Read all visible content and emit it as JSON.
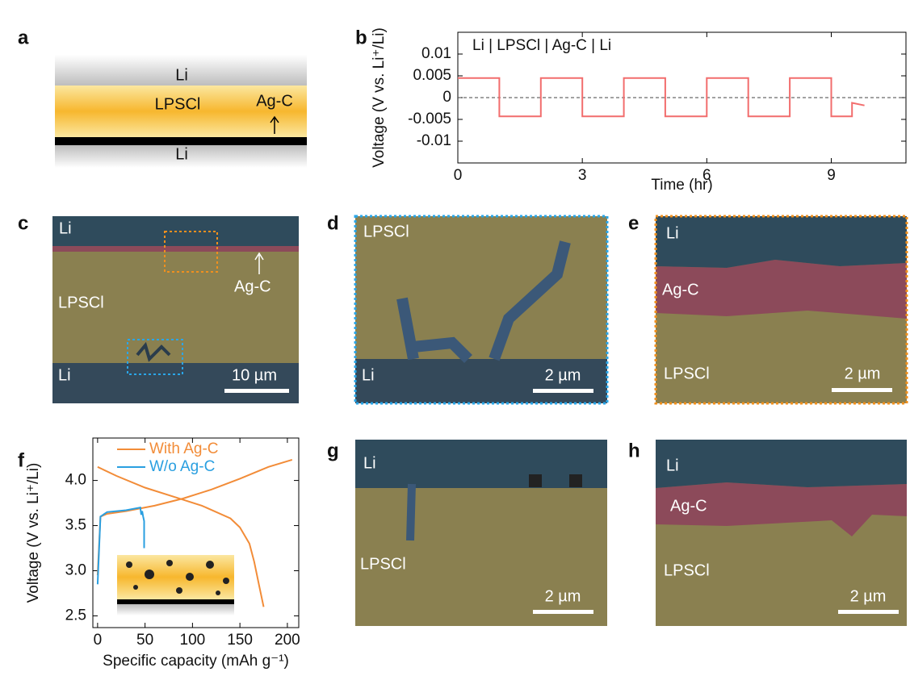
{
  "panels": {
    "a": {
      "label": "a",
      "top_layer": "Li",
      "middle_layer": "LPSCl",
      "interlayer": "Ag-C",
      "bottom_layer": "Li"
    },
    "c": {
      "label": "c",
      "top": "Li",
      "interlayer": "Ag-C",
      "middle": "LPSCl",
      "bottom": "Li",
      "scale": "10 µm"
    },
    "d": {
      "label": "d",
      "top": "LPSCl",
      "bottom": "Li",
      "scale": "2 µm"
    },
    "e": {
      "label": "e",
      "top": "Li",
      "interlayer": "Ag-C",
      "bottom": "LPSCl",
      "scale": "2 µm"
    },
    "g": {
      "label": "g",
      "top": "Li",
      "bottom": "LPSCl",
      "scale": "2 µm"
    },
    "h": {
      "label": "h",
      "top": "Li",
      "interlayer": "Ag-C",
      "bottom": "LPSCl",
      "scale": "2 µm"
    }
  },
  "chart_data": [
    {
      "type": "line",
      "panel_label": "b",
      "annotation": "Li | LPSCl | Ag-C | Li",
      "x_label": "Time (hr)",
      "y_label": "Voltage (V vs. Li⁺/Li)",
      "xlim": [
        0,
        10.8
      ],
      "ylim": [
        -0.015,
        0.015
      ],
      "xticks": [
        0,
        3,
        6,
        9
      ],
      "yticks": [
        0.01,
        0.005,
        0,
        -0.005,
        -0.01
      ],
      "hline": 0,
      "series": [
        {
          "color": "#f26d6d",
          "x": [
            0,
            1,
            1,
            2,
            2,
            3,
            3,
            4,
            4,
            5,
            5,
            6,
            6,
            7,
            7,
            8,
            8,
            9,
            9,
            9.5,
            9.5,
            9.8
          ],
          "values": [
            0.0045,
            0.0045,
            -0.0043,
            -0.0043,
            0.0045,
            0.0045,
            -0.0043,
            -0.0043,
            0.0045,
            0.0045,
            -0.0043,
            -0.0043,
            0.0045,
            0.0045,
            -0.0043,
            -0.0043,
            0.0045,
            0.0045,
            -0.0043,
            -0.0043,
            -0.0012,
            -0.0018
          ]
        }
      ]
    },
    {
      "type": "line",
      "panel_label": "f",
      "legend": "upper right",
      "x_label": "Specific capacity (mAh g⁻¹)",
      "y_label": "Voltage (V vs. Li⁺/Li)",
      "xlim": [
        -5,
        212
      ],
      "ylim": [
        2.37,
        4.47
      ],
      "xticks": [
        0,
        50,
        100,
        150,
        200
      ],
      "yticks": [
        {
          "value": 4.0,
          "label": "4.0"
        },
        {
          "value": 3.5,
          "label": "3.5"
        },
        {
          "value": 3.0,
          "label": "3.0"
        },
        {
          "value": 2.5,
          "label": "2.5"
        }
      ],
      "series": [
        {
          "name": "With Ag-C",
          "color": "#f28c38",
          "x": [
            0,
            20,
            50,
            80,
            110,
            140,
            150,
            160,
            165,
            170,
            175,
            null,
            0,
            3,
            10,
            30,
            60,
            90,
            120,
            150,
            180,
            205
          ],
          "values": [
            4.15,
            4.05,
            3.92,
            3.82,
            3.72,
            3.58,
            3.48,
            3.3,
            3.1,
            2.85,
            2.6,
            null,
            2.95,
            3.6,
            3.63,
            3.66,
            3.72,
            3.8,
            3.9,
            4.02,
            4.15,
            4.23
          ]
        },
        {
          "name": "W/o Ag-C",
          "color": "#2a9fe0",
          "x": [
            0,
            3,
            10,
            30,
            45,
            46,
            47,
            48,
            49,
            49
          ],
          "values": [
            2.85,
            3.6,
            3.65,
            3.67,
            3.7,
            3.62,
            3.66,
            3.6,
            3.55,
            3.25
          ]
        }
      ]
    }
  ]
}
